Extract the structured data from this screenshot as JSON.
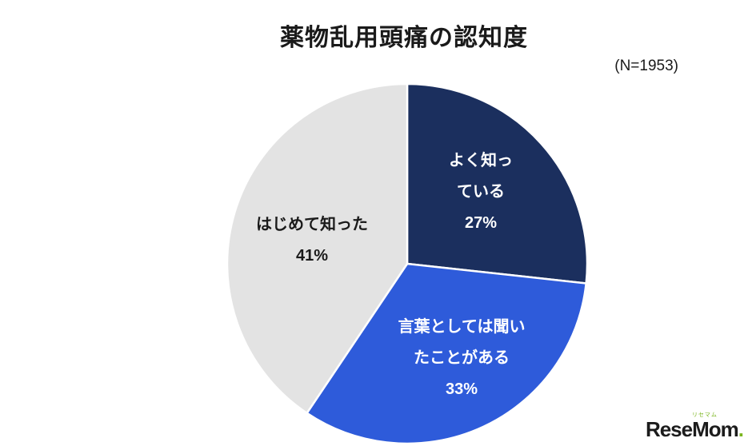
{
  "title": "薬物乱用頭痛の認知度",
  "annotation": "(N=1953)",
  "chart_data": {
    "type": "pie",
    "title": "薬物乱用頭痛の認知度",
    "annotation": "(N=1953)",
    "sample_size": 1953,
    "legend_position": "none",
    "data_labels": "inside",
    "start_angle_deg": 0,
    "direction": "clockwise",
    "slices": [
      {
        "label": "よく知っている",
        "value_pct": 27,
        "color": "#1b2f5e",
        "text_color": "#ffffff"
      },
      {
        "label": "言葉としては聞いたことがある",
        "value_pct": 33,
        "color": "#2e5bda",
        "text_color": "#ffffff"
      },
      {
        "label": "はじめて知った",
        "value_pct": 41,
        "color": "#e3e3e3",
        "text_color": "#1a1a1a"
      }
    ]
  },
  "labels": {
    "slice1": {
      "line1": "よく知っ",
      "line2": "ている",
      "pct": "27%"
    },
    "slice2": {
      "line1": "言葉としては聞い",
      "line2": "たことがある",
      "pct": "33%"
    },
    "slice3": {
      "line1": "はじめて知った",
      "pct": "41%"
    }
  },
  "logo": {
    "text": "ReseMom",
    "dot": ".",
    "ruby": "リセマム"
  }
}
